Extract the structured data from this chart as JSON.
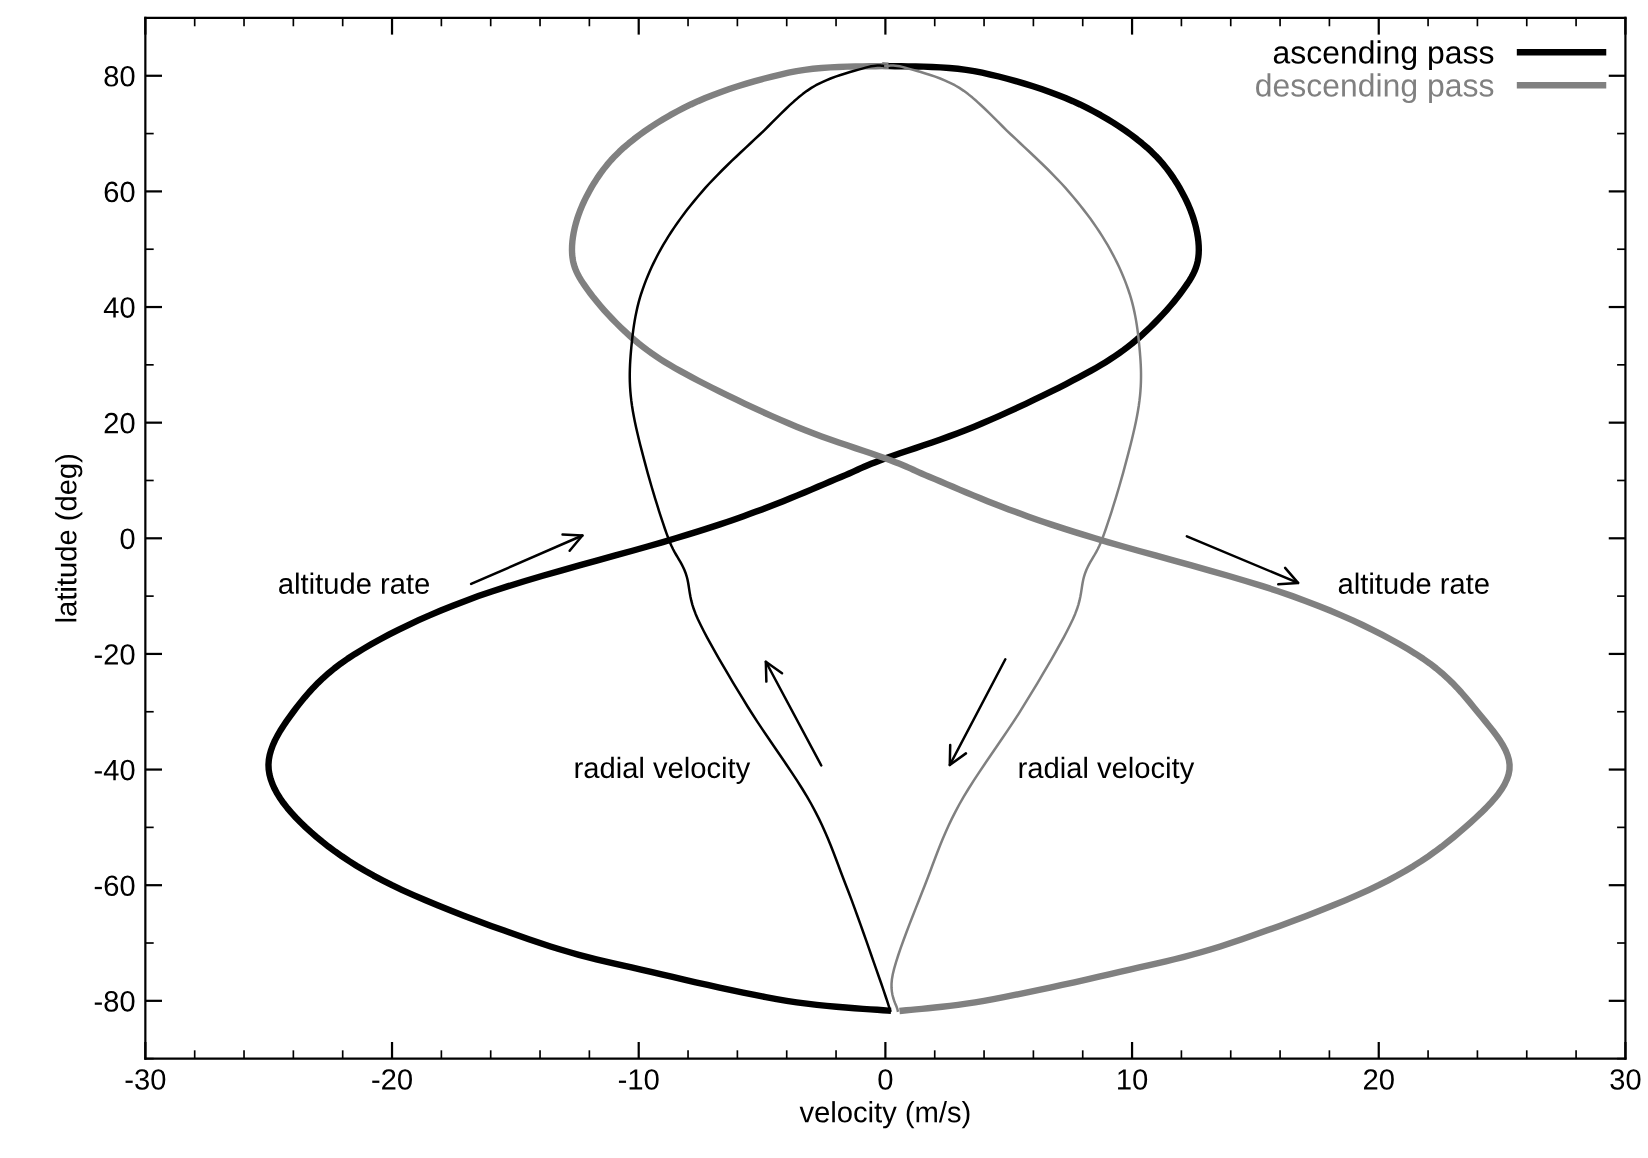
{
  "chart_data": {
    "type": "line",
    "xlabel": "velocity (m/s)",
    "ylabel": "latitude (deg)",
    "xlim": [
      -30,
      30
    ],
    "ylim": [
      -90,
      90
    ],
    "xticks": [
      -30,
      {
        "value": -28,
        "label": null
      },
      {
        "value": -26,
        "label": null
      },
      {
        "value": -24,
        "label": null
      },
      {
        "value": -22,
        "label": null
      },
      -20,
      {
        "value": -18,
        "label": null
      },
      {
        "value": -16,
        "label": null
      },
      {
        "value": -14,
        "label": null
      },
      {
        "value": -12,
        "label": null
      },
      -10,
      {
        "value": -8,
        "label": null
      },
      {
        "value": -6,
        "label": null
      },
      {
        "value": -4,
        "label": null
      },
      {
        "value": -2,
        "label": null
      },
      0,
      {
        "value": 2,
        "label": null
      },
      {
        "value": 4,
        "label": null
      },
      {
        "value": 6,
        "label": null
      },
      {
        "value": 8,
        "label": null
      },
      10,
      {
        "value": 12,
        "label": null
      },
      {
        "value": 14,
        "label": null
      },
      {
        "value": 16,
        "label": null
      },
      {
        "value": 18,
        "label": null
      },
      20,
      {
        "value": 22,
        "label": null
      },
      {
        "value": 24,
        "label": null
      },
      {
        "value": 26,
        "label": null
      },
      {
        "value": 28,
        "label": null
      },
      30
    ],
    "yticks": [
      {
        "value": -90,
        "label": null
      },
      -80,
      {
        "value": -70,
        "label": null
      },
      -60,
      {
        "value": -50,
        "label": null
      },
      -40,
      {
        "value": -30,
        "label": null
      },
      -20,
      {
        "value": -10,
        "label": null
      },
      0,
      {
        "value": 10,
        "label": null
      },
      20,
      {
        "value": 30,
        "label": null
      },
      40,
      {
        "value": 50,
        "label": null
      },
      60,
      {
        "value": 70,
        "label": null
      },
      80,
      {
        "value": 90,
        "label": null
      }
    ],
    "grid": false,
    "legend": "top right",
    "marker": "none",
    "line_style": "solid",
    "series": [
      {
        "name": "ascending pass",
        "color": "#000000",
        "x": [
          0.1,
          -4,
          -9.5,
          -14,
          -20,
          -23.5,
          -25,
          -24,
          -21.5,
          -16.5,
          -8.5,
          -5,
          -1.8,
          -0.2,
          3.6,
          7.6,
          10,
          11.95,
          12.7,
          12.2,
          10.6,
          7.6,
          3.6,
          0
        ],
        "values": [
          -81.7,
          -80,
          -75,
          -70,
          -60,
          -50,
          -40,
          -30,
          -20,
          -10,
          0,
          5,
          10.6,
          13.5,
          19.3,
          27.3,
          33.7,
          42.3,
          49.2,
          58.4,
          67.6,
          75.6,
          80.8,
          81.7
        ]
      },
      {
        "name": "descending pass",
        "color": "#808080",
        "x": [
          0,
          -3.6,
          -7.6,
          -10.6,
          -12.2,
          -12.7,
          -11.95,
          -10,
          -7.6,
          -3.6,
          0.2,
          1.8,
          5,
          8.5,
          16.5,
          21.5,
          24,
          25.3,
          23.5,
          20,
          14,
          9.5,
          4,
          0.7
        ],
        "values": [
          81.7,
          80.8,
          75.6,
          67.6,
          58.4,
          49.2,
          42.3,
          33.7,
          27.3,
          19.3,
          13.5,
          10.6,
          5,
          0,
          -10,
          -20,
          -30,
          -40,
          -50,
          -60,
          -70,
          -75,
          -80,
          -81.7
        ]
      },
      {
        "color": "#000000",
        "x": [
          0.2,
          -0.3,
          -1.6,
          -3,
          -5.6,
          -7.6,
          -8.1,
          -8.8,
          -9.7,
          -10.3,
          -10.3,
          -9.9,
          -8.9,
          -7.3,
          -5.1,
          -3,
          -0.8,
          0
        ],
        "values": [
          -81.7,
          -75.4,
          -60,
          -46,
          -29,
          -14,
          -6,
          0,
          12.3,
          23.8,
          33,
          42.3,
          51.5,
          60.6,
          69.8,
          77.9,
          81.4,
          81.7
        ]
      },
      {
        "color": "#808080",
        "x": [
          0,
          0.8,
          3,
          5.1,
          7.3,
          8.9,
          9.9,
          10.3,
          10.3,
          9.7,
          8.8,
          8.1,
          7.6,
          5.6,
          3,
          1.6,
          0.3,
          0.5
        ],
        "values": [
          81.7,
          81.4,
          77.9,
          69.8,
          60.6,
          51.5,
          42.3,
          33,
          23.8,
          12.3,
          0,
          -6,
          -14,
          -29,
          -46,
          -60,
          -75.4,
          -81.7
        ]
      }
    ],
    "annotations": [
      "altitude rate",
      "altitude rate",
      "radial velocity",
      "radial velocity"
    ]
  }
}
